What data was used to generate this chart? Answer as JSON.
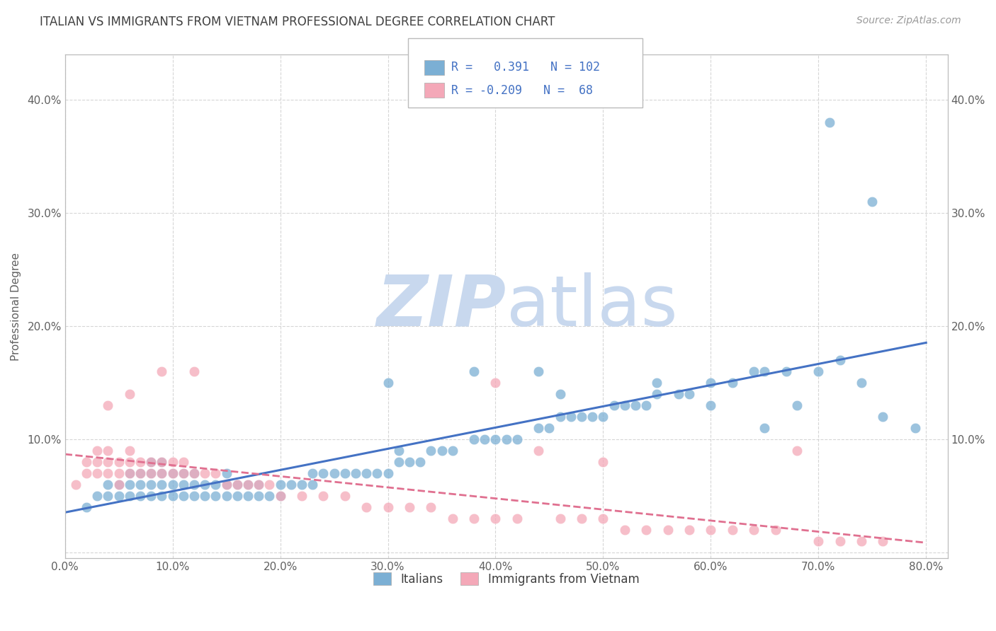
{
  "title": "ITALIAN VS IMMIGRANTS FROM VIETNAM PROFESSIONAL DEGREE CORRELATION CHART",
  "source": "Source: ZipAtlas.com",
  "xlabel": "",
  "ylabel": "Professional Degree",
  "xlim": [
    0.0,
    0.82
  ],
  "ylim": [
    -0.005,
    0.44
  ],
  "xticks": [
    0.0,
    0.1,
    0.2,
    0.3,
    0.4,
    0.5,
    0.6,
    0.7,
    0.8
  ],
  "xticklabels": [
    "0.0%",
    "10.0%",
    "20.0%",
    "30.0%",
    "40.0%",
    "50.0%",
    "60.0%",
    "70.0%",
    "80.0%"
  ],
  "yticks": [
    0.0,
    0.1,
    0.2,
    0.3,
    0.4
  ],
  "yticklabels": [
    "",
    "10.0%",
    "20.0%",
    "30.0%",
    "40.0%"
  ],
  "legend_labels": [
    "Italians",
    "Immigrants from Vietnam"
  ],
  "blue_R": 0.391,
  "blue_N": 102,
  "pink_R": -0.209,
  "pink_N": 68,
  "blue_color": "#7bafd4",
  "pink_color": "#f4a8b8",
  "blue_line_color": "#4472c4",
  "pink_line_color": "#e07090",
  "watermark_zip": "ZIP",
  "watermark_atlas": "atlas",
  "watermark_color_zip": "#c8d8ee",
  "watermark_color_atlas": "#c8d8ee",
  "background_color": "#ffffff",
  "grid_color": "#cccccc",
  "title_color": "#404040",
  "axis_label_color": "#606060",
  "legend_text_color": "#4472c4",
  "blue_scatter_x": [
    0.02,
    0.03,
    0.04,
    0.04,
    0.05,
    0.05,
    0.06,
    0.06,
    0.06,
    0.07,
    0.07,
    0.07,
    0.08,
    0.08,
    0.08,
    0.08,
    0.09,
    0.09,
    0.09,
    0.09,
    0.1,
    0.1,
    0.1,
    0.11,
    0.11,
    0.11,
    0.12,
    0.12,
    0.12,
    0.13,
    0.13,
    0.14,
    0.14,
    0.15,
    0.15,
    0.15,
    0.16,
    0.16,
    0.17,
    0.17,
    0.18,
    0.18,
    0.19,
    0.2,
    0.2,
    0.21,
    0.22,
    0.23,
    0.23,
    0.24,
    0.25,
    0.26,
    0.27,
    0.28,
    0.29,
    0.3,
    0.31,
    0.31,
    0.32,
    0.33,
    0.34,
    0.35,
    0.36,
    0.38,
    0.39,
    0.4,
    0.41,
    0.42,
    0.44,
    0.45,
    0.46,
    0.47,
    0.48,
    0.49,
    0.5,
    0.51,
    0.52,
    0.53,
    0.54,
    0.55,
    0.57,
    0.58,
    0.6,
    0.62,
    0.64,
    0.65,
    0.67,
    0.7,
    0.72,
    0.74,
    0.76,
    0.79,
    0.3,
    0.44,
    0.55,
    0.6,
    0.65,
    0.68,
    0.71,
    0.75,
    0.46,
    0.38
  ],
  "blue_scatter_y": [
    0.04,
    0.05,
    0.05,
    0.06,
    0.05,
    0.06,
    0.05,
    0.06,
    0.07,
    0.05,
    0.06,
    0.07,
    0.05,
    0.06,
    0.07,
    0.08,
    0.05,
    0.06,
    0.07,
    0.08,
    0.05,
    0.06,
    0.07,
    0.05,
    0.06,
    0.07,
    0.05,
    0.06,
    0.07,
    0.05,
    0.06,
    0.05,
    0.06,
    0.05,
    0.06,
    0.07,
    0.05,
    0.06,
    0.05,
    0.06,
    0.05,
    0.06,
    0.05,
    0.05,
    0.06,
    0.06,
    0.06,
    0.06,
    0.07,
    0.07,
    0.07,
    0.07,
    0.07,
    0.07,
    0.07,
    0.07,
    0.08,
    0.09,
    0.08,
    0.08,
    0.09,
    0.09,
    0.09,
    0.1,
    0.1,
    0.1,
    0.1,
    0.1,
    0.11,
    0.11,
    0.12,
    0.12,
    0.12,
    0.12,
    0.12,
    0.13,
    0.13,
    0.13,
    0.13,
    0.14,
    0.14,
    0.14,
    0.15,
    0.15,
    0.16,
    0.16,
    0.16,
    0.16,
    0.17,
    0.15,
    0.12,
    0.11,
    0.15,
    0.16,
    0.15,
    0.13,
    0.11,
    0.13,
    0.38,
    0.31,
    0.14,
    0.16
  ],
  "pink_scatter_x": [
    0.01,
    0.02,
    0.02,
    0.03,
    0.03,
    0.03,
    0.04,
    0.04,
    0.04,
    0.05,
    0.05,
    0.05,
    0.06,
    0.06,
    0.06,
    0.07,
    0.07,
    0.08,
    0.08,
    0.09,
    0.09,
    0.1,
    0.1,
    0.11,
    0.11,
    0.12,
    0.13,
    0.14,
    0.15,
    0.16,
    0.17,
    0.18,
    0.19,
    0.2,
    0.22,
    0.24,
    0.26,
    0.28,
    0.3,
    0.32,
    0.34,
    0.36,
    0.38,
    0.4,
    0.42,
    0.44,
    0.46,
    0.48,
    0.5,
    0.52,
    0.54,
    0.56,
    0.58,
    0.6,
    0.62,
    0.64,
    0.66,
    0.68,
    0.7,
    0.72,
    0.74,
    0.76,
    0.4,
    0.5,
    0.09,
    0.12,
    0.06,
    0.04
  ],
  "pink_scatter_y": [
    0.06,
    0.07,
    0.08,
    0.07,
    0.08,
    0.09,
    0.07,
    0.08,
    0.09,
    0.06,
    0.07,
    0.08,
    0.07,
    0.08,
    0.09,
    0.07,
    0.08,
    0.07,
    0.08,
    0.07,
    0.08,
    0.07,
    0.08,
    0.07,
    0.08,
    0.07,
    0.07,
    0.07,
    0.06,
    0.06,
    0.06,
    0.06,
    0.06,
    0.05,
    0.05,
    0.05,
    0.05,
    0.04,
    0.04,
    0.04,
    0.04,
    0.03,
    0.03,
    0.03,
    0.03,
    0.09,
    0.03,
    0.03,
    0.03,
    0.02,
    0.02,
    0.02,
    0.02,
    0.02,
    0.02,
    0.02,
    0.02,
    0.09,
    0.01,
    0.01,
    0.01,
    0.01,
    0.15,
    0.08,
    0.16,
    0.16,
    0.14,
    0.13
  ]
}
